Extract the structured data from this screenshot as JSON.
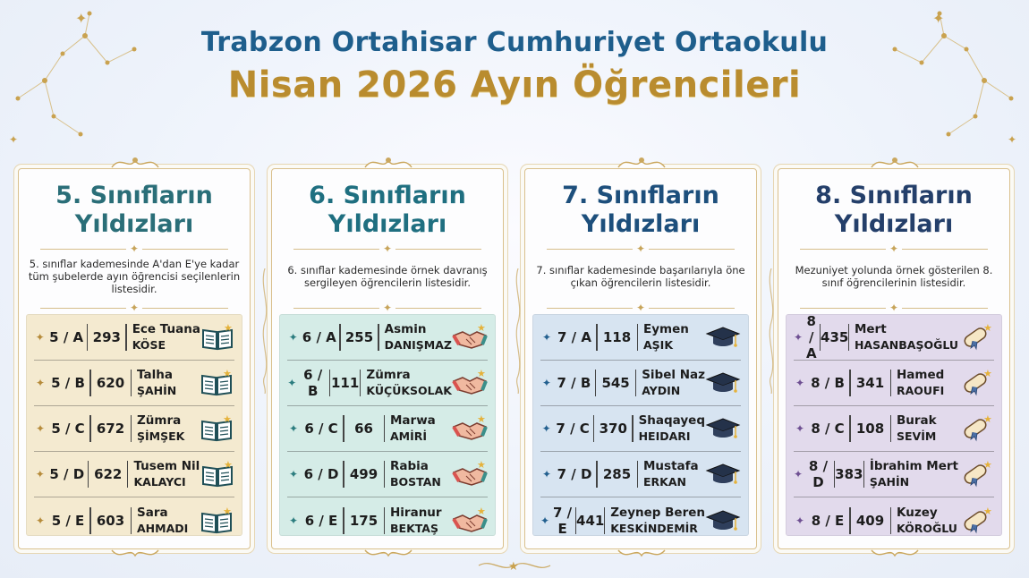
{
  "header": {
    "school": "Trabzon Ortahisar Cumhuriyet Ortaokulu",
    "subtitle": "Nisan 2026 Ayın Öğrencileri"
  },
  "colors": {
    "grade5_title": "#2a6e78",
    "grade5_bg": "#f4ead0",
    "grade5_star": "#b68b3a",
    "grade6_title": "#1f6f80",
    "grade6_bg": "#d5ece7",
    "grade6_star": "#2c7d7f",
    "grade7_title": "#1d4f7c",
    "grade7_bg": "#d7e4f1",
    "grade7_star": "#23608f",
    "grade8_title": "#243f6a",
    "grade8_bg": "#e2daec",
    "grade8_star": "#6e4f92"
  },
  "cards": [
    {
      "title_line1": "5. Sınıfların",
      "title_line2": "Yıldızları",
      "description": "5. sınıflar kademesinde A'dan E'ye kadar tüm şubelerde ayın öğrencisi seçilenlerin listesidir.",
      "icon": "open-book-icon",
      "rows": [
        {
          "class": "5 / A",
          "number": "293",
          "first": "Ece Tuana",
          "last": "KÖSE"
        },
        {
          "class": "5 / B",
          "number": "620",
          "first": "Talha",
          "last": "ŞAHİN"
        },
        {
          "class": "5 / C",
          "number": "672",
          "first": "Zümra",
          "last": "ŞİMŞEK"
        },
        {
          "class": "5 / D",
          "number": "622",
          "first": "Tusem Nil",
          "last": "KALAYCI"
        },
        {
          "class": "5 / E",
          "number": "603",
          "first": "Sara",
          "last": "AHMADI"
        }
      ]
    },
    {
      "title_line1": "6. Sınıfların",
      "title_line2": "Yıldızları",
      "description": "6. sınıflar kademesinde örnek davranış sergileyen öğrencilerin listesidir.",
      "icon": "handshake-icon",
      "rows": [
        {
          "class": "6 / A",
          "number": "255",
          "first": "Asmin",
          "last": "DANIŞMAZ"
        },
        {
          "class": "6 / B",
          "number": "111",
          "first": "Zümra",
          "last": "KÜÇÜKSOLAK"
        },
        {
          "class": "6 / C",
          "number": "66",
          "first": "Marwa",
          "last": "AMİRİ"
        },
        {
          "class": "6 / D",
          "number": "499",
          "first": "Rabia",
          "last": "BOSTAN"
        },
        {
          "class": "6 / E",
          "number": "175",
          "first": "Hiranur",
          "last": "BEKTAŞ"
        }
      ]
    },
    {
      "title_line1": "7. Sınıfların",
      "title_line2": "Yıldızları",
      "description": "7. sınıflar kademesinde başarılarıyla öne çıkan öğrencilerin listesidir.",
      "icon": "graduation-cap-icon",
      "rows": [
        {
          "class": "7 / A",
          "number": "118",
          "first": "Eymen",
          "last": "AŞIK"
        },
        {
          "class": "7 / B",
          "number": "545",
          "first": "Sibel Naz",
          "last": "AYDIN"
        },
        {
          "class": "7 / C",
          "number": "370",
          "first": "Shaqayeq",
          "last": "HEIDARI"
        },
        {
          "class": "7 / D",
          "number": "285",
          "first": "Mustafa",
          "last": "ERKAN"
        },
        {
          "class": "7 / E",
          "number": "441",
          "first": "Zeynep Beren",
          "last": "KESKİNDEMİR"
        }
      ]
    },
    {
      "title_line1": "8. Sınıfların",
      "title_line2": "Yıldızları",
      "description": "Mezuniyet yolunda örnek gösterilen 8. sınıf öğrencilerinin listesidir.",
      "icon": "diploma-scroll-icon",
      "rows": [
        {
          "class": "8 / A",
          "number": "435",
          "first": "Mert",
          "last": "HASANBAŞOĞLU"
        },
        {
          "class": "8 / B",
          "number": "341",
          "first": "Hamed",
          "last": "RAOUFI"
        },
        {
          "class": "8 / C",
          "number": "108",
          "first": "Burak",
          "last": "SEVİM"
        },
        {
          "class": "8 / D",
          "number": "383",
          "first": "İbrahim Mert",
          "last": "ŞAHİN"
        },
        {
          "class": "8 / E",
          "number": "409",
          "first": "Kuzey",
          "last": "KÖROĞLU"
        }
      ]
    }
  ]
}
